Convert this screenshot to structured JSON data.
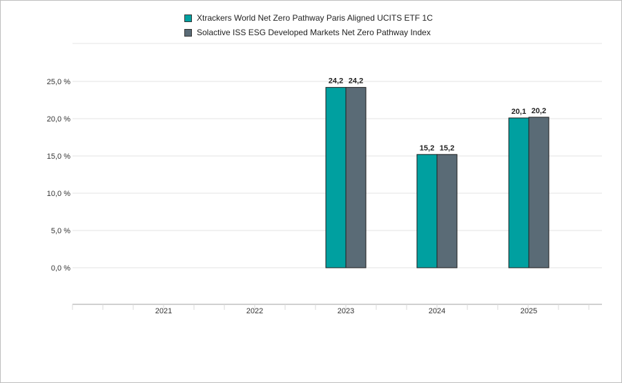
{
  "chart_data": {
    "type": "bar",
    "categories": [
      "2021",
      "2022",
      "2023",
      "2024",
      "2025"
    ],
    "series": [
      {
        "name": "Xtrackers World Net Zero Pathway Paris Aligned UCITS ETF 1C",
        "color": "#00a0a0",
        "values": [
          null,
          null,
          24.2,
          15.2,
          20.1
        ],
        "labels": [
          "",
          "",
          "24,2",
          "15,2",
          "20,1"
        ]
      },
      {
        "name": "Solactive ISS ESG Developed Markets Net Zero Pathway Index",
        "color": "#5a6b76",
        "values": [
          null,
          null,
          24.2,
          15.2,
          20.2
        ],
        "labels": [
          "",
          "",
          "24,2",
          "15,2",
          "20,2"
        ]
      }
    ],
    "yticks": [
      0,
      5,
      10,
      15,
      20,
      25
    ],
    "ytick_labels": [
      "0,0 %",
      "5,0 %",
      "10,0 %",
      "15,0 %",
      "20,0 %",
      "25,0 %"
    ],
    "ylim": [
      0,
      25
    ],
    "grid": true,
    "legend_position": "top-center"
  }
}
